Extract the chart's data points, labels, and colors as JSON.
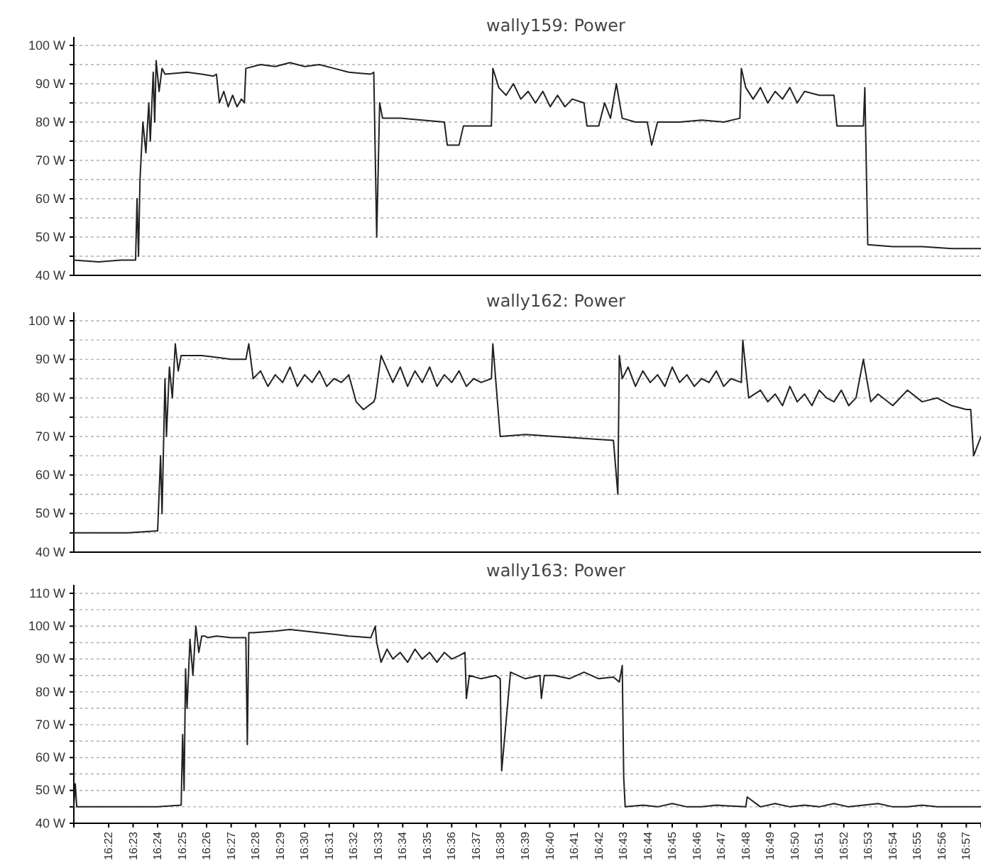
{
  "chart_data": [
    {
      "type": "line",
      "title": "wally159: Power",
      "color": "#222222",
      "grid": "y",
      "tick_labels": "y",
      "xlim": [
        16.343,
        16.96
      ],
      "ylim": [
        40,
        100
      ],
      "yticks": [
        {
          "value": 40,
          "label": "40 W"
        },
        {
          "value": 45,
          "label": null
        },
        {
          "value": 50,
          "label": "50 W"
        },
        {
          "value": 55,
          "label": null
        },
        {
          "value": 60,
          "label": "60 W"
        },
        {
          "value": 65,
          "label": null
        },
        {
          "value": 70,
          "label": "70 W"
        },
        {
          "value": 75,
          "label": null
        },
        {
          "value": 80,
          "label": "80 W"
        },
        {
          "value": 85,
          "label": null
        },
        {
          "value": 90,
          "label": "90 W"
        },
        {
          "value": 95,
          "label": null
        },
        {
          "value": 100,
          "label": "100 W"
        }
      ],
      "x": [
        16.343,
        16.36,
        16.375,
        16.385,
        16.386,
        16.387,
        16.388,
        16.39,
        16.392,
        16.394,
        16.395,
        16.397,
        16.398,
        16.399,
        16.401,
        16.403,
        16.405,
        16.42,
        16.43,
        16.438,
        16.44,
        16.442,
        16.445,
        16.448,
        16.451,
        16.454,
        16.457,
        16.459,
        16.46,
        16.47,
        16.48,
        16.49,
        16.5,
        16.51,
        16.52,
        16.53,
        16.545,
        16.547,
        16.549,
        16.551,
        16.553,
        16.565,
        16.58,
        16.595,
        16.597,
        16.605,
        16.608,
        16.62,
        16.627,
        16.628,
        16.632,
        16.637,
        16.642,
        16.647,
        16.652,
        16.657,
        16.662,
        16.667,
        16.672,
        16.677,
        16.682,
        16.69,
        16.692,
        16.7,
        16.704,
        16.708,
        16.712,
        16.716,
        16.725,
        16.733,
        16.736,
        16.74,
        16.755,
        16.77,
        16.785,
        16.796,
        16.797,
        16.8,
        16.805,
        16.81,
        16.815,
        16.82,
        16.825,
        16.83,
        16.835,
        16.84,
        16.85,
        16.86,
        16.862,
        16.875,
        16.88,
        16.881,
        16.883,
        16.9,
        16.92,
        16.94,
        16.96
      ],
      "values": [
        44,
        43.5,
        44,
        44,
        60,
        45,
        65,
        80,
        72,
        85,
        75,
        93,
        80,
        96,
        88,
        94,
        92.5,
        93,
        92.5,
        92,
        92.5,
        85,
        88,
        84,
        87,
        84,
        86,
        85,
        94,
        95,
        94.5,
        95.5,
        94.5,
        95,
        94,
        93,
        92.5,
        93,
        50,
        85,
        81,
        81,
        80.5,
        80,
        74,
        74,
        79,
        79,
        79,
        94,
        89,
        87,
        90,
        86,
        88,
        85,
        88,
        84,
        87,
        84,
        86,
        85,
        79,
        79,
        85,
        81,
        90,
        81,
        80,
        80,
        74,
        80,
        80,
        80.5,
        80,
        81,
        94,
        89,
        86,
        89,
        85,
        88,
        86,
        89,
        85,
        88,
        87,
        87,
        79,
        79,
        79,
        89,
        48,
        47.5,
        47.5,
        47,
        47
      ]
    },
    {
      "type": "line",
      "title": "wally162: Power",
      "color": "#222222",
      "grid": "y",
      "tick_labels": "y",
      "xlim": [
        16.343,
        16.96
      ],
      "ylim": [
        40,
        100
      ],
      "yticks": [
        {
          "value": 40,
          "label": "40 W"
        },
        {
          "value": 45,
          "label": null
        },
        {
          "value": 50,
          "label": "50 W"
        },
        {
          "value": 55,
          "label": null
        },
        {
          "value": 60,
          "label": "60 W"
        },
        {
          "value": 65,
          "label": null
        },
        {
          "value": 70,
          "label": "70 W"
        },
        {
          "value": 75,
          "label": null
        },
        {
          "value": 80,
          "label": "80 W"
        },
        {
          "value": 85,
          "label": null
        },
        {
          "value": 90,
          "label": "90 W"
        },
        {
          "value": 95,
          "label": null
        },
        {
          "value": 100,
          "label": "100 W"
        }
      ],
      "x": [
        16.343,
        16.36,
        16.38,
        16.4,
        16.402,
        16.403,
        16.405,
        16.406,
        16.408,
        16.41,
        16.412,
        16.414,
        16.416,
        16.418,
        16.43,
        16.44,
        16.45,
        16.46,
        16.462,
        16.465,
        16.47,
        16.475,
        16.48,
        16.485,
        16.49,
        16.495,
        16.5,
        16.505,
        16.51,
        16.515,
        16.52,
        16.525,
        16.53,
        16.535,
        16.54,
        16.547,
        16.548,
        16.552,
        16.56,
        16.565,
        16.57,
        16.575,
        16.58,
        16.585,
        16.59,
        16.595,
        16.6,
        16.605,
        16.61,
        16.615,
        16.62,
        16.627,
        16.628,
        16.633,
        16.65,
        16.67,
        16.69,
        16.71,
        16.713,
        16.714,
        16.716,
        16.72,
        16.725,
        16.73,
        16.735,
        16.74,
        16.745,
        16.75,
        16.755,
        16.76,
        16.765,
        16.77,
        16.775,
        16.78,
        16.785,
        16.79,
        16.797,
        16.798,
        16.802,
        16.81,
        16.815,
        16.82,
        16.825,
        16.83,
        16.835,
        16.84,
        16.845,
        16.85,
        16.855,
        16.86,
        16.865,
        16.87,
        16.875,
        16.88,
        16.885,
        16.89,
        16.9,
        16.91,
        16.92,
        16.93,
        16.94,
        16.95,
        16.953,
        16.955,
        16.96
      ],
      "values": [
        45,
        45,
        45,
        45.5,
        65,
        50,
        85,
        70,
        88,
        80,
        94,
        87,
        91,
        91,
        91,
        90.5,
        90,
        90,
        94,
        85,
        87,
        83,
        86,
        84,
        88,
        83,
        86,
        84,
        87,
        83,
        85,
        84,
        86,
        79,
        77,
        79,
        80,
        91,
        84,
        88,
        83,
        87,
        84,
        88,
        83,
        86,
        84,
        87,
        83,
        85,
        84,
        85,
        94,
        70,
        70.5,
        70,
        69.5,
        69,
        55,
        91,
        85,
        88,
        83,
        87,
        84,
        86,
        83,
        88,
        84,
        86,
        83,
        85,
        84,
        87,
        83,
        85,
        84,
        95,
        80,
        82,
        79,
        81,
        78,
        83,
        79,
        81,
        78,
        82,
        80,
        79,
        82,
        78,
        80,
        90,
        79,
        81,
        78,
        82,
        79,
        80,
        78,
        77,
        77,
        65,
        70
      ]
    },
    {
      "type": "line",
      "title": "wally163: Power",
      "color": "#222222",
      "grid": "y",
      "xlim": [
        16.343,
        16.96
      ],
      "ylim": [
        40,
        110
      ],
      "yticks": [
        {
          "value": 40,
          "label": "40 W"
        },
        {
          "value": 45,
          "label": null
        },
        {
          "value": 50,
          "label": "50 W"
        },
        {
          "value": 55,
          "label": null
        },
        {
          "value": 60,
          "label": "60 W"
        },
        {
          "value": 65,
          "label": null
        },
        {
          "value": 70,
          "label": "70 W"
        },
        {
          "value": 75,
          "label": null
        },
        {
          "value": 80,
          "label": "80 W"
        },
        {
          "value": 85,
          "label": null
        },
        {
          "value": 90,
          "label": "90 W"
        },
        {
          "value": 95,
          "label": null
        },
        {
          "value": 100,
          "label": "100 W"
        },
        {
          "value": 105,
          "label": null
        },
        {
          "value": 110,
          "label": "110 W"
        }
      ],
      "xticks": [
        {
          "value": 16.3667,
          "label": "16:22"
        },
        {
          "value": 16.3833,
          "label": "16:23"
        },
        {
          "value": 16.4,
          "label": "16:24"
        },
        {
          "value": 16.4167,
          "label": "16:25"
        },
        {
          "value": 16.4333,
          "label": "16:26"
        },
        {
          "value": 16.45,
          "label": "16:27"
        },
        {
          "value": 16.4667,
          "label": "16:28"
        },
        {
          "value": 16.4833,
          "label": "16:29"
        },
        {
          "value": 16.5,
          "label": "16:30"
        },
        {
          "value": 16.5167,
          "label": "16:31"
        },
        {
          "value": 16.5333,
          "label": "16:32"
        },
        {
          "value": 16.55,
          "label": "16:33"
        },
        {
          "value": 16.5667,
          "label": "16:34"
        },
        {
          "value": 16.5833,
          "label": "16:35"
        },
        {
          "value": 16.6,
          "label": "16:36"
        },
        {
          "value": 16.6167,
          "label": "16:37"
        },
        {
          "value": 16.6333,
          "label": "16:38"
        },
        {
          "value": 16.65,
          "label": "16:39"
        },
        {
          "value": 16.6667,
          "label": "16:40"
        },
        {
          "value": 16.6833,
          "label": "16:41"
        },
        {
          "value": 16.7,
          "label": "16:42"
        },
        {
          "value": 16.7167,
          "label": "16:43"
        },
        {
          "value": 16.7333,
          "label": "16:44"
        },
        {
          "value": 16.75,
          "label": "16:45"
        },
        {
          "value": 16.7667,
          "label": "16:46"
        },
        {
          "value": 16.7833,
          "label": "16:47"
        },
        {
          "value": 16.8,
          "label": "16:48"
        },
        {
          "value": 16.8167,
          "label": "16:49"
        },
        {
          "value": 16.8333,
          "label": "16:50"
        },
        {
          "value": 16.85,
          "label": "16:51"
        },
        {
          "value": 16.8667,
          "label": "16:52"
        },
        {
          "value": 16.8833,
          "label": "16:53"
        },
        {
          "value": 16.9,
          "label": "16:54"
        },
        {
          "value": 16.9167,
          "label": "16:55"
        },
        {
          "value": 16.9333,
          "label": "16:56"
        },
        {
          "value": 16.95,
          "label": "16:57"
        }
      ],
      "x": [
        16.343,
        16.344,
        16.345,
        16.36,
        16.38,
        16.4,
        16.416,
        16.417,
        16.418,
        16.419,
        16.42,
        16.422,
        16.424,
        16.426,
        16.428,
        16.43,
        16.432,
        16.434,
        16.44,
        16.45,
        16.46,
        16.461,
        16.462,
        16.465,
        16.48,
        16.49,
        16.5,
        16.51,
        16.52,
        16.53,
        16.545,
        16.548,
        16.549,
        16.552,
        16.556,
        16.56,
        16.565,
        16.57,
        16.575,
        16.58,
        16.585,
        16.59,
        16.595,
        16.6,
        16.605,
        16.609,
        16.61,
        16.612,
        16.62,
        16.63,
        16.633,
        16.634,
        16.64,
        16.65,
        16.66,
        16.661,
        16.663,
        16.67,
        16.68,
        16.69,
        16.7,
        16.71,
        16.714,
        16.716,
        16.717,
        16.718,
        16.73,
        16.74,
        16.75,
        16.76,
        16.77,
        16.78,
        16.8,
        16.801,
        16.81,
        16.82,
        16.83,
        16.84,
        16.85,
        16.86,
        16.87,
        16.88,
        16.89,
        16.9,
        16.91,
        16.92,
        16.93,
        16.94,
        16.96
      ],
      "values": [
        45,
        52,
        45,
        45,
        45,
        45,
        45.5,
        67,
        50,
        87,
        75,
        96,
        85,
        100,
        92,
        97,
        97,
        96.5,
        97,
        96.5,
        96.5,
        64,
        98,
        98,
        98.5,
        99,
        98.5,
        98,
        97.5,
        97,
        96.5,
        100,
        95,
        89,
        93,
        90,
        92,
        89,
        93,
        90,
        92,
        89,
        92,
        90,
        91,
        92,
        78,
        85,
        84,
        85,
        84,
        56,
        86,
        84,
        85,
        78,
        85,
        85,
        84,
        86,
        84,
        84.5,
        83,
        88,
        54,
        45,
        45.5,
        45,
        46,
        45,
        45,
        45.5,
        45,
        48,
        45,
        46,
        45,
        45.5,
        45,
        46,
        45,
        45.5,
        46,
        45,
        45,
        45.5,
        45,
        45,
        45
      ]
    }
  ]
}
